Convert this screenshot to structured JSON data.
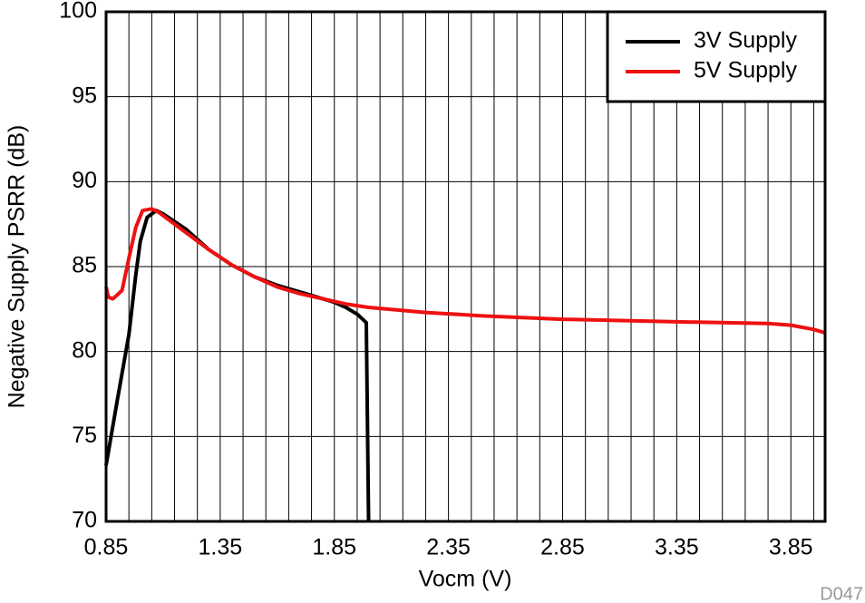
{
  "chart_data": {
    "type": "line",
    "x_label": "Vocm (V)",
    "y_label": "Negative Supply PSRR (dB)",
    "annotation": "D047",
    "xlim": [
      0.85,
      4.0
    ],
    "ylim": [
      70,
      100
    ],
    "xticks": [
      0.85,
      1.35,
      1.85,
      2.35,
      2.85,
      3.35,
      3.85
    ],
    "yticks": [
      70,
      75,
      80,
      85,
      90,
      95,
      100
    ],
    "grid": true,
    "legend_position": "top-right",
    "series": [
      {
        "name": "3V Supply",
        "color": "#000000",
        "x": [
          0.85,
          0.9,
          0.95,
          0.98,
          1.0,
          1.03,
          1.07,
          1.1,
          1.2,
          1.3,
          1.4,
          1.5,
          1.6,
          1.7,
          1.8,
          1.85,
          1.9,
          1.95,
          1.99,
          2.0
        ],
        "values": [
          73.3,
          77.2,
          81,
          84.5,
          86.5,
          87.9,
          88.3,
          88.1,
          87.2,
          86.0,
          85.1,
          84.4,
          83.9,
          83.5,
          83.1,
          82.9,
          82.6,
          82.2,
          81.7,
          70
        ]
      },
      {
        "name": "5V Supply",
        "color": "#ee1111",
        "x": [
          0.85,
          0.86,
          0.88,
          0.92,
          0.95,
          0.98,
          1.01,
          1.05,
          1.08,
          1.2,
          1.3,
          1.4,
          1.5,
          1.6,
          1.7,
          1.8,
          1.9,
          2.0,
          2.25,
          2.5,
          2.85,
          3.35,
          3.75,
          3.85,
          3.95,
          4.0
        ],
        "values": [
          83.8,
          83.2,
          83.1,
          83.6,
          85.5,
          87.3,
          88.3,
          88.4,
          88.2,
          87.0,
          86.0,
          85.1,
          84.4,
          83.8,
          83.4,
          83.1,
          82.8,
          82.6,
          82.3,
          82.1,
          81.9,
          81.75,
          81.65,
          81.55,
          81.3,
          81.1
        ]
      }
    ]
  }
}
